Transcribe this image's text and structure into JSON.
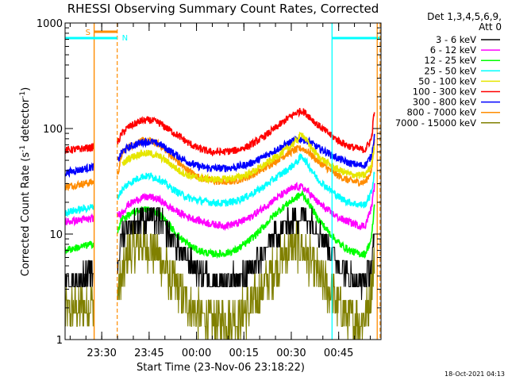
{
  "chart_data": {
    "type": "line",
    "title": "RHESSI Observing Summary Count Rates, Corrected",
    "xlabel": "Start Time (23-Nov-06 23:18:22)",
    "ylabel": "Corrected Count Rate (s",
    "ylabel_sup1": "-1",
    "ylabel_mid": " detector",
    "ylabel_sup2": "-1",
    "ylabel_end": ")",
    "yscale": "log",
    "ylim": [
      1,
      1000
    ],
    "xlim_minutes": [
      0,
      100
    ],
    "x_ticks": [
      {
        "label": "23:30",
        "minute": 11.6
      },
      {
        "label": "23:45",
        "minute": 26.6
      },
      {
        "label": "00:00",
        "minute": 41.6
      },
      {
        "label": "00:15",
        "minute": 56.6
      },
      {
        "label": "00:30",
        "minute": 71.6
      },
      {
        "label": "00:45",
        "minute": 86.6
      }
    ],
    "y_ticks": [
      {
        "label": "1",
        "value": 1
      },
      {
        "label": "10",
        "value": 10
      },
      {
        "label": "100",
        "value": 100
      },
      {
        "label": "1000",
        "value": 1000
      }
    ],
    "legend_header": [
      "Det 1,3,4,5,6,9,",
      "Att 0"
    ],
    "legend_position": "right",
    "timestamp": "18-Oct-2021 04:13",
    "flag_labels": {
      "saa": "S",
      "night": "N"
    },
    "gaps": [
      {
        "kind": "saa",
        "start_minute": 9.2,
        "end_minute": 16.5
      },
      {
        "kind": "night",
        "start_minute": 0,
        "end_minute": 16.5
      },
      {
        "kind": "night",
        "start_minute": 84.5,
        "end_minute": 100
      },
      {
        "kind": "saa",
        "start_minute": 98.8,
        "end_minute": 100
      }
    ],
    "series": [
      {
        "name": "3 - 6 keV",
        "color": "#000000",
        "values": [
          [
            0,
            3.5
          ],
          [
            8.5,
            4.2
          ],
          [
            16.5,
            5
          ],
          [
            18,
            10
          ],
          [
            20,
            12
          ],
          [
            24,
            14
          ],
          [
            27,
            14.5
          ],
          [
            30,
            13
          ],
          [
            33,
            10
          ],
          [
            36,
            7.5
          ],
          [
            39,
            5.5
          ],
          [
            42,
            4.5
          ],
          [
            46,
            3.8
          ],
          [
            50,
            3.6
          ],
          [
            54,
            3.8
          ],
          [
            58,
            4.3
          ],
          [
            62,
            6
          ],
          [
            66,
            9
          ],
          [
            70,
            12
          ],
          [
            73,
            14
          ],
          [
            75,
            15
          ],
          [
            77,
            14
          ],
          [
            80,
            11
          ],
          [
            84,
            7
          ],
          [
            87,
            5
          ],
          [
            90,
            4
          ],
          [
            93,
            3.6
          ],
          [
            95,
            3.5
          ],
          [
            97,
            5
          ],
          [
            98,
            10
          ]
        ]
      },
      {
        "name": "6 - 12 keV",
        "color": "#ff00ff",
        "values": [
          [
            0,
            13
          ],
          [
            8.5,
            14
          ],
          [
            16.5,
            15
          ],
          [
            18,
            16
          ],
          [
            20,
            19
          ],
          [
            24,
            22
          ],
          [
            27,
            22.5
          ],
          [
            30,
            21
          ],
          [
            33,
            18
          ],
          [
            36,
            16
          ],
          [
            39,
            14.5
          ],
          [
            42,
            13.5
          ],
          [
            46,
            12.5
          ],
          [
            50,
            12
          ],
          [
            54,
            12.5
          ],
          [
            58,
            14
          ],
          [
            62,
            17
          ],
          [
            66,
            21
          ],
          [
            70,
            25
          ],
          [
            73,
            28
          ],
          [
            75,
            28
          ],
          [
            77,
            25
          ],
          [
            80,
            20
          ],
          [
            84,
            16
          ],
          [
            87,
            14
          ],
          [
            90,
            13
          ],
          [
            93,
            12
          ],
          [
            95,
            12
          ],
          [
            97,
            18
          ],
          [
            98,
            30
          ]
        ]
      },
      {
        "name": "12 - 25 keV",
        "color": "#00ff00",
        "values": [
          [
            0,
            7
          ],
          [
            8.5,
            8
          ],
          [
            16.5,
            10
          ],
          [
            18,
            14
          ],
          [
            20,
            15
          ],
          [
            24,
            17
          ],
          [
            27,
            17
          ],
          [
            30,
            15.5
          ],
          [
            33,
            12
          ],
          [
            36,
            9.5
          ],
          [
            39,
            8
          ],
          [
            42,
            7
          ],
          [
            46,
            6.5
          ],
          [
            50,
            6.5
          ],
          [
            54,
            7
          ],
          [
            58,
            8.5
          ],
          [
            62,
            11
          ],
          [
            66,
            15
          ],
          [
            70,
            19
          ],
          [
            73,
            22
          ],
          [
            75,
            24
          ],
          [
            77,
            20
          ],
          [
            80,
            14
          ],
          [
            84,
            10
          ],
          [
            87,
            8
          ],
          [
            90,
            7
          ],
          [
            93,
            6.5
          ],
          [
            95,
            6.5
          ],
          [
            97,
            9
          ],
          [
            98,
            20
          ]
        ]
      },
      {
        "name": "25 - 50 keV",
        "color": "#00ffff",
        "values": [
          [
            0,
            16
          ],
          [
            8.5,
            18
          ],
          [
            16.5,
            22
          ],
          [
            18,
            26
          ],
          [
            20,
            30
          ],
          [
            24,
            35
          ],
          [
            27,
            35.5
          ],
          [
            30,
            33
          ],
          [
            33,
            28
          ],
          [
            36,
            24.5
          ],
          [
            39,
            22
          ],
          [
            42,
            21
          ],
          [
            46,
            20
          ],
          [
            50,
            19.5
          ],
          [
            54,
            20.5
          ],
          [
            58,
            23
          ],
          [
            62,
            27
          ],
          [
            66,
            33
          ],
          [
            70,
            40
          ],
          [
            73,
            47
          ],
          [
            75,
            55
          ],
          [
            77,
            45
          ],
          [
            80,
            33
          ],
          [
            84,
            26
          ],
          [
            87,
            22
          ],
          [
            90,
            20
          ],
          [
            93,
            19
          ],
          [
            95,
            19
          ],
          [
            97,
            25
          ],
          [
            98,
            40
          ]
        ]
      },
      {
        "name": "50 - 100 keV",
        "color": "#e6e600",
        "values": [
          [
            18,
            45
          ],
          [
            20,
            52
          ],
          [
            24,
            58
          ],
          [
            27,
            58
          ],
          [
            30,
            54
          ],
          [
            33,
            47
          ],
          [
            36,
            40
          ],
          [
            39,
            36
          ],
          [
            42,
            34
          ],
          [
            46,
            33
          ],
          [
            50,
            33
          ],
          [
            54,
            34
          ],
          [
            58,
            37
          ],
          [
            62,
            43
          ],
          [
            66,
            52
          ],
          [
            70,
            63
          ],
          [
            73,
            75
          ],
          [
            75,
            90
          ],
          [
            77,
            72
          ],
          [
            80,
            55
          ],
          [
            84,
            45
          ],
          [
            87,
            40
          ],
          [
            90,
            37
          ],
          [
            93,
            36
          ],
          [
            95,
            36
          ],
          [
            97,
            45
          ],
          [
            98,
            70
          ]
        ]
      },
      {
        "name": "100 - 300 keV",
        "color": "#ff0000",
        "values": [
          [
            0,
            62
          ],
          [
            8.5,
            66
          ],
          [
            16.5,
            72
          ],
          [
            18,
            90
          ],
          [
            20,
            103
          ],
          [
            24,
            118
          ],
          [
            27,
            120
          ],
          [
            30,
            112
          ],
          [
            33,
            97
          ],
          [
            36,
            85
          ],
          [
            39,
            73
          ],
          [
            42,
            65
          ],
          [
            46,
            60
          ],
          [
            50,
            60
          ],
          [
            54,
            62
          ],
          [
            58,
            68
          ],
          [
            62,
            80
          ],
          [
            66,
            98
          ],
          [
            70,
            122
          ],
          [
            73,
            140
          ],
          [
            75,
            148
          ],
          [
            77,
            133
          ],
          [
            80,
            108
          ],
          [
            84,
            87
          ],
          [
            87,
            75
          ],
          [
            90,
            68
          ],
          [
            93,
            64
          ],
          [
            95,
            63
          ],
          [
            97,
            80
          ],
          [
            98,
            160
          ]
        ]
      },
      {
        "name": "300 - 800 keV",
        "color": "#0000ff",
        "values": [
          [
            0,
            38
          ],
          [
            8.5,
            43
          ],
          [
            16.5,
            48
          ],
          [
            18,
            60
          ],
          [
            20,
            66
          ],
          [
            24,
            74
          ],
          [
            27,
            75
          ],
          [
            30,
            71
          ],
          [
            33,
            62
          ],
          [
            36,
            54
          ],
          [
            39,
            48
          ],
          [
            42,
            44
          ],
          [
            46,
            42
          ],
          [
            50,
            42
          ],
          [
            54,
            43
          ],
          [
            58,
            46
          ],
          [
            62,
            52
          ],
          [
            66,
            61
          ],
          [
            70,
            71
          ],
          [
            73,
            78
          ],
          [
            75,
            80
          ],
          [
            77,
            76
          ],
          [
            80,
            66
          ],
          [
            84,
            57
          ],
          [
            87,
            51
          ],
          [
            90,
            47
          ],
          [
            93,
            45
          ],
          [
            95,
            45
          ],
          [
            97,
            55
          ],
          [
            98,
            90
          ]
        ]
      },
      {
        "name": "800 - 7000 keV",
        "color": "#ff8c00",
        "values": [
          [
            0,
            28
          ],
          [
            8.5,
            31
          ],
          [
            16.5,
            35
          ],
          [
            18,
            58
          ],
          [
            20,
            67
          ],
          [
            24,
            76
          ],
          [
            27,
            76
          ],
          [
            30,
            70
          ],
          [
            33,
            58
          ],
          [
            36,
            47
          ],
          [
            39,
            40
          ],
          [
            42,
            35
          ],
          [
            46,
            32
          ],
          [
            50,
            31
          ],
          [
            54,
            32
          ],
          [
            58,
            35
          ],
          [
            62,
            40
          ],
          [
            66,
            48
          ],
          [
            70,
            57
          ],
          [
            73,
            63
          ],
          [
            75,
            65
          ],
          [
            77,
            60
          ],
          [
            80,
            49
          ],
          [
            84,
            40
          ],
          [
            87,
            35
          ],
          [
            90,
            32
          ],
          [
            93,
            31
          ],
          [
            95,
            31
          ],
          [
            97,
            40
          ],
          [
            98,
            80
          ]
        ]
      },
      {
        "name": "7000 - 15000 keV",
        "color": "#808000",
        "values": [
          [
            0,
            1.8
          ],
          [
            8.5,
            2.2
          ],
          [
            16.5,
            2.5
          ],
          [
            18,
            4
          ],
          [
            20,
            6.5
          ],
          [
            24,
            8
          ],
          [
            27,
            7.5
          ],
          [
            30,
            6
          ],
          [
            33,
            4
          ],
          [
            36,
            3
          ],
          [
            39,
            2.2
          ],
          [
            42,
            1.7
          ],
          [
            46,
            1.5
          ],
          [
            50,
            1.5
          ],
          [
            54,
            1.6
          ],
          [
            58,
            1.9
          ],
          [
            62,
            2.8
          ],
          [
            66,
            4.5
          ],
          [
            70,
            6.5
          ],
          [
            73,
            8
          ],
          [
            75,
            7.5
          ],
          [
            77,
            6
          ],
          [
            80,
            4
          ],
          [
            84,
            2.8
          ],
          [
            87,
            2
          ],
          [
            90,
            1.6
          ],
          [
            93,
            1.5
          ],
          [
            95,
            1.6
          ],
          [
            97,
            3
          ],
          [
            98,
            6
          ]
        ]
      }
    ]
  }
}
